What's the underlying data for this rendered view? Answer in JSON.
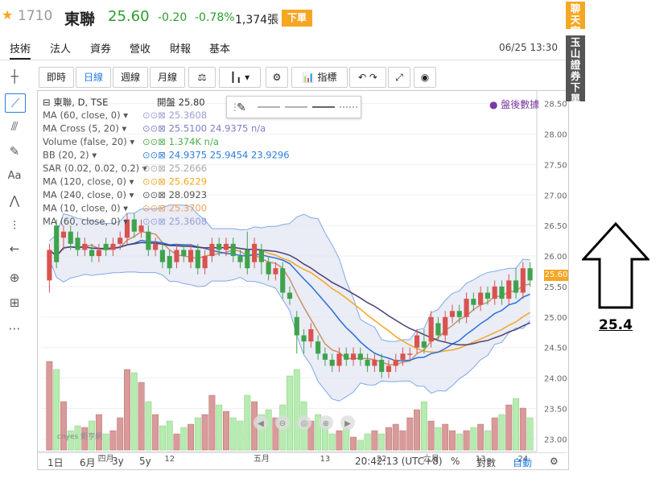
{
  "header": {
    "code": "1710",
    "name": "東聯",
    "price": "25.60",
    "change": "-0.20",
    "change_pct": "-0.78%",
    "volume": "1,374張",
    "order_button": "下單",
    "datetime": "06/25 13:30"
  },
  "tabs": [
    "技術",
    "法人",
    "資券",
    "營收",
    "財報",
    "基本"
  ],
  "toolbar": {
    "intraday": "即時",
    "daily": "日線",
    "weekly": "週線",
    "monthly": "月線",
    "indicators": "指標"
  },
  "indicators": {
    "title": "東聯, D, TSE",
    "open_label": "開盤",
    "open_value": "25.80",
    "lines": [
      {
        "label": "MA (60, close, 0)",
        "values": "25.3608",
        "color": "#9a9ed6"
      },
      {
        "label": "MA Cross (5, 20)",
        "values": "25.5100 24.9375 n/a",
        "color": "#7b7fc4"
      },
      {
        "label": "Volume (false, 20)",
        "values": "1.374K n/a",
        "color": "#4caf50"
      },
      {
        "label": "BB (20, 2)",
        "values": "24.9375 25.9454 23.9296",
        "color": "#2a7de1"
      },
      {
        "label": "SAR (0.02, 0.02, 0.2)",
        "values": "25.2666",
        "color": "#aaaaaa"
      },
      {
        "label": "MA (120, close, 0)",
        "values": "25.6229",
        "color": "#f5a623"
      },
      {
        "label": "MA (240, close, 0)",
        "values": "28.0923",
        "color": "#555555"
      },
      {
        "label": "MA (10, close, 0)",
        "values": "25.3700",
        "color": "#e8a060"
      },
      {
        "label": "MA (60, close, 0)",
        "values": "25.3608",
        "color": "#9a9ed6"
      }
    ]
  },
  "post_market": "盤後數據",
  "side_tabs": {
    "chat": "聊天室",
    "broker": "玉山證券下單"
  },
  "annotation": "25.4",
  "bottom": {
    "ranges": [
      "1日",
      "6月",
      "3y",
      "5y"
    ],
    "time": "20:42:13 (UTC+8)",
    "percent": "%",
    "log": "對數",
    "auto": "自動"
  },
  "watermark": "cnyes 鉅亨網",
  "chart_data": {
    "type": "candlestick",
    "title": "東聯, D, TSE",
    "y_ticks": [
      "28.50",
      "28.00",
      "27.50",
      "27.00",
      "26.50",
      "26.00",
      "25.50",
      "25.00",
      "24.50",
      "24.00",
      "23.50",
      "23.00"
    ],
    "ylim": [
      22.9,
      28.6
    ],
    "x_ticks": [
      "四月",
      "12",
      "五月",
      "13",
      "22",
      "六月",
      "13",
      "24"
    ],
    "last_price": "25.60",
    "candles": [
      {
        "o": 25.6,
        "c": 26.1,
        "h": 26.2,
        "l": 25.4
      },
      {
        "o": 26.5,
        "c": 25.9,
        "h": 26.6,
        "l": 25.8
      },
      {
        "o": 26.3,
        "c": 26.4,
        "h": 26.5,
        "l": 26.1
      },
      {
        "o": 26.4,
        "c": 26.2,
        "h": 26.5,
        "l": 26.1
      },
      {
        "o": 26.3,
        "c": 26.1,
        "h": 26.4,
        "l": 26.0
      },
      {
        "o": 26.1,
        "c": 26.2,
        "h": 26.3,
        "l": 26.0
      },
      {
        "o": 26.1,
        "c": 26.0,
        "h": 26.2,
        "l": 25.9
      },
      {
        "o": 26.0,
        "c": 26.1,
        "h": 26.2,
        "l": 25.9
      },
      {
        "o": 26.2,
        "c": 26.1,
        "h": 26.3,
        "l": 26.0
      },
      {
        "o": 26.1,
        "c": 26.2,
        "h": 26.3,
        "l": 26.0
      },
      {
        "o": 26.2,
        "c": 26.3,
        "h": 26.4,
        "l": 26.1
      },
      {
        "o": 26.3,
        "c": 26.6,
        "h": 26.7,
        "l": 26.2
      },
      {
        "o": 26.6,
        "c": 26.4,
        "h": 26.7,
        "l": 26.3
      },
      {
        "o": 26.4,
        "c": 26.5,
        "h": 26.6,
        "l": 26.3
      },
      {
        "o": 26.4,
        "c": 26.1,
        "h": 26.5,
        "l": 26.0
      },
      {
        "o": 26.1,
        "c": 26.2,
        "h": 26.3,
        "l": 26.0
      },
      {
        "o": 26.1,
        "c": 25.9,
        "h": 26.2,
        "l": 25.8
      },
      {
        "o": 26.0,
        "c": 25.8,
        "h": 26.1,
        "l": 25.7
      },
      {
        "o": 25.9,
        "c": 26.1,
        "h": 26.2,
        "l": 25.8
      },
      {
        "o": 26.1,
        "c": 26.0,
        "h": 26.2,
        "l": 25.9
      },
      {
        "o": 25.9,
        "c": 26.1,
        "h": 26.2,
        "l": 25.8
      },
      {
        "o": 26.1,
        "c": 25.8,
        "h": 26.2,
        "l": 25.7
      },
      {
        "o": 25.8,
        "c": 26.0,
        "h": 26.1,
        "l": 25.7
      },
      {
        "o": 26.0,
        "c": 26.2,
        "h": 26.3,
        "l": 25.9
      },
      {
        "o": 26.2,
        "c": 26.1,
        "h": 26.3,
        "l": 26.0
      },
      {
        "o": 26.1,
        "c": 26.2,
        "h": 26.3,
        "l": 26.0
      },
      {
        "o": 26.2,
        "c": 26.0,
        "h": 26.3,
        "l": 25.9
      },
      {
        "o": 26.0,
        "c": 25.9,
        "h": 26.1,
        "l": 25.8
      },
      {
        "o": 26.1,
        "c": 25.8,
        "h": 26.4,
        "l": 25.7
      },
      {
        "o": 25.9,
        "c": 26.2,
        "h": 26.3,
        "l": 25.8
      },
      {
        "o": 26.1,
        "c": 25.9,
        "h": 26.2,
        "l": 25.7
      },
      {
        "o": 25.9,
        "c": 25.7,
        "h": 26.0,
        "l": 25.6
      },
      {
        "o": 25.7,
        "c": 25.8,
        "h": 25.9,
        "l": 25.6
      },
      {
        "o": 25.8,
        "c": 25.4,
        "h": 25.9,
        "l": 25.3
      },
      {
        "o": 25.4,
        "c": 25.3,
        "h": 25.5,
        "l": 25.2
      },
      {
        "o": 25.0,
        "c": 24.7,
        "h": 25.1,
        "l": 24.4
      },
      {
        "o": 24.7,
        "c": 24.6,
        "h": 24.8,
        "l": 24.4
      },
      {
        "o": 24.6,
        "c": 24.8,
        "h": 24.9,
        "l": 24.5
      },
      {
        "o": 24.6,
        "c": 24.4,
        "h": 24.7,
        "l": 24.3
      },
      {
        "o": 24.4,
        "c": 24.3,
        "h": 24.5,
        "l": 24.2
      },
      {
        "o": 24.3,
        "c": 24.2,
        "h": 24.4,
        "l": 24.1
      },
      {
        "o": 24.2,
        "c": 24.4,
        "h": 24.5,
        "l": 24.1
      },
      {
        "o": 24.4,
        "c": 24.3,
        "h": 24.5,
        "l": 24.2
      },
      {
        "o": 24.3,
        "c": 24.4,
        "h": 24.5,
        "l": 24.2
      },
      {
        "o": 24.4,
        "c": 24.3,
        "h": 24.5,
        "l": 24.2
      },
      {
        "o": 24.3,
        "c": 24.2,
        "h": 24.4,
        "l": 24.1
      },
      {
        "o": 24.2,
        "c": 24.3,
        "h": 24.4,
        "l": 24.1
      },
      {
        "o": 24.3,
        "c": 24.1,
        "h": 24.4,
        "l": 24.0
      },
      {
        "o": 24.1,
        "c": 24.2,
        "h": 24.3,
        "l": 24.0
      },
      {
        "o": 24.2,
        "c": 24.3,
        "h": 24.4,
        "l": 24.1
      },
      {
        "o": 24.3,
        "c": 24.4,
        "h": 24.5,
        "l": 24.2
      },
      {
        "o": 24.4,
        "c": 24.4,
        "h": 24.5,
        "l": 24.3
      },
      {
        "o": 24.5,
        "c": 24.7,
        "h": 24.8,
        "l": 24.4
      },
      {
        "o": 24.6,
        "c": 24.5,
        "h": 24.8,
        "l": 24.4
      },
      {
        "o": 24.6,
        "c": 25.0,
        "h": 25.1,
        "l": 24.5
      },
      {
        "o": 24.9,
        "c": 24.7,
        "h": 25.0,
        "l": 24.6
      },
      {
        "o": 24.7,
        "c": 25.0,
        "h": 25.1,
        "l": 24.6
      },
      {
        "o": 25.0,
        "c": 25.1,
        "h": 25.2,
        "l": 24.9
      },
      {
        "o": 25.1,
        "c": 25.0,
        "h": 25.2,
        "l": 24.9
      },
      {
        "o": 25.0,
        "c": 25.3,
        "h": 25.4,
        "l": 24.9
      },
      {
        "o": 25.3,
        "c": 25.2,
        "h": 25.4,
        "l": 25.1
      },
      {
        "o": 25.2,
        "c": 25.4,
        "h": 25.5,
        "l": 25.1
      },
      {
        "o": 25.4,
        "c": 25.3,
        "h": 25.5,
        "l": 25.2
      },
      {
        "o": 25.3,
        "c": 25.5,
        "h": 25.6,
        "l": 25.2
      },
      {
        "o": 25.5,
        "c": 25.3,
        "h": 25.6,
        "l": 25.2
      },
      {
        "o": 25.3,
        "c": 25.6,
        "h": 25.7,
        "l": 25.2
      },
      {
        "o": 25.6,
        "c": 25.4,
        "h": 25.8,
        "l": 25.3
      },
      {
        "o": 25.4,
        "c": 25.8,
        "h": 25.9,
        "l": 25.3
      },
      {
        "o": 25.8,
        "c": 25.6,
        "h": 25.9,
        "l": 25.5
      }
    ],
    "volumes": [
      55,
      50,
      30,
      12,
      15,
      14,
      18,
      22,
      10,
      12,
      20,
      50,
      48,
      42,
      30,
      22,
      15,
      18,
      10,
      14,
      16,
      20,
      22,
      34,
      28,
      24,
      20,
      18,
      34,
      30,
      22,
      25,
      20,
      28,
      46,
      50,
      30,
      18,
      22,
      16,
      10,
      12,
      14,
      8,
      6,
      10,
      12,
      10,
      14,
      16,
      12,
      20,
      25,
      30,
      18,
      14,
      16,
      12,
      10,
      12,
      14,
      16,
      12,
      20,
      22,
      28,
      32,
      26,
      20
    ]
  }
}
